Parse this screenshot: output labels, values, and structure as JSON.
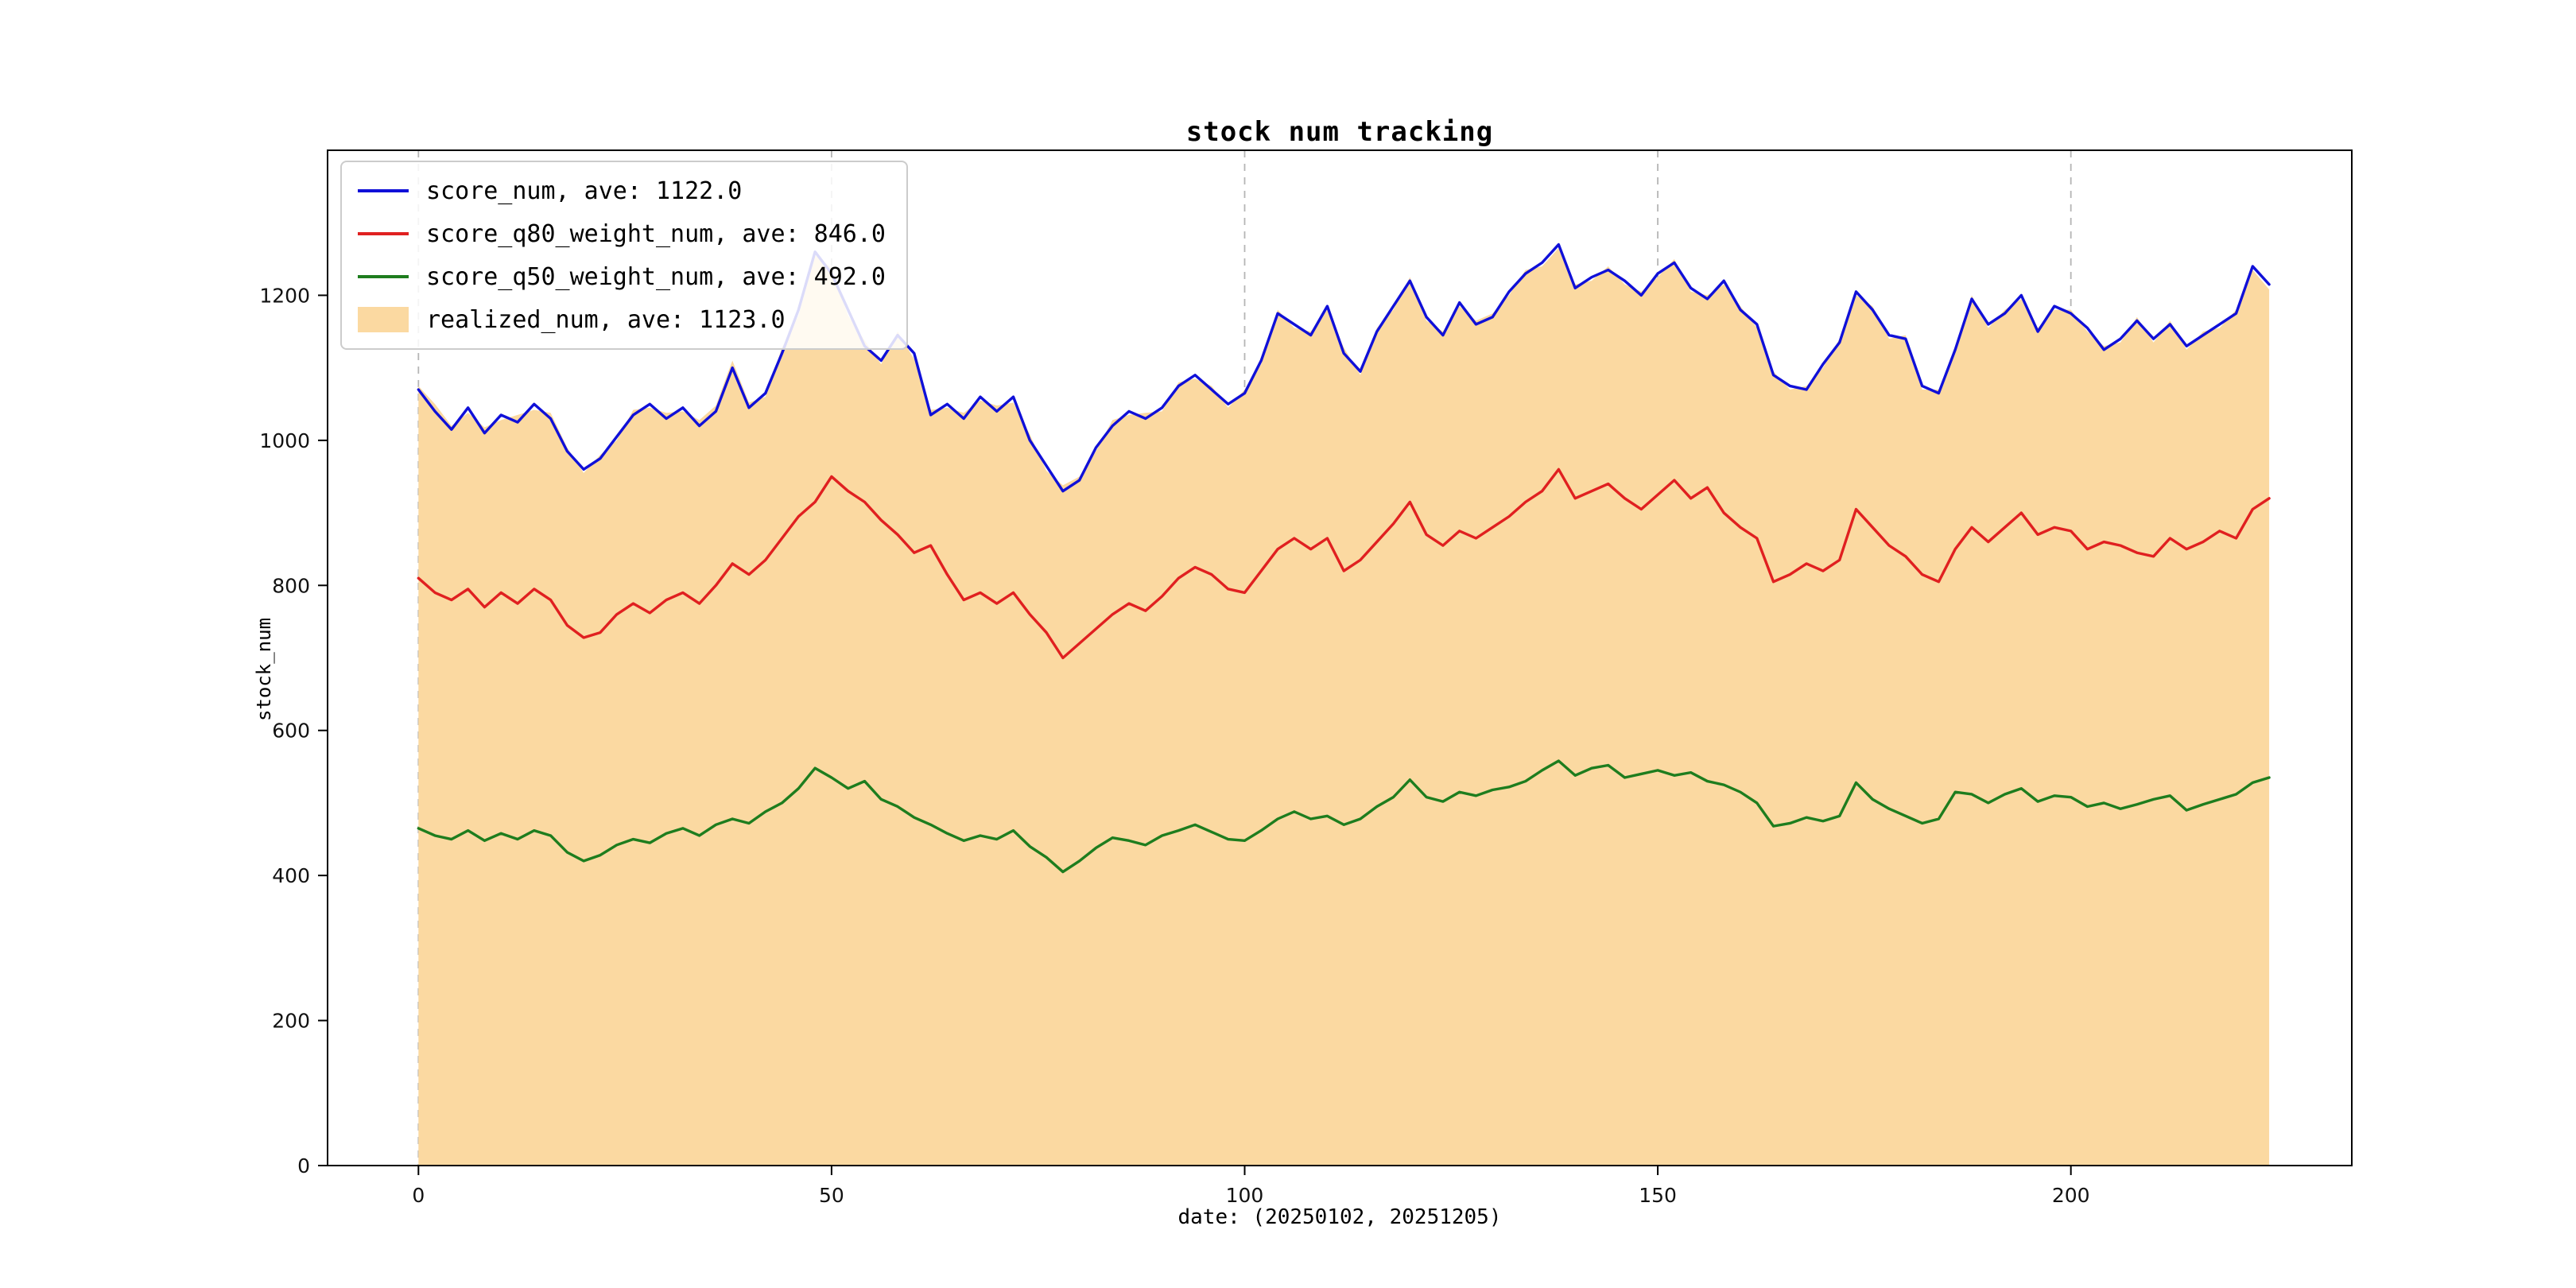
{
  "title": "stock num tracking",
  "chart_data": {
    "type": "line",
    "title": "stock num tracking",
    "xlabel": "date: (20250102, 20251205)",
    "ylabel": "stock_num",
    "xlim": [
      -11,
      234
    ],
    "ylim": [
      0,
      1400
    ],
    "xticks": [
      0,
      50,
      100,
      150,
      200
    ],
    "yticks": [
      0,
      200,
      400,
      600,
      800,
      1000,
      1200
    ],
    "grid": "vertical-dashed",
    "grid_color": "#b5b5b5",
    "legend_position": "upper-left",
    "x": [
      0,
      2,
      4,
      6,
      8,
      10,
      12,
      14,
      16,
      18,
      20,
      22,
      24,
      26,
      28,
      30,
      32,
      34,
      36,
      38,
      40,
      42,
      44,
      46,
      48,
      50,
      52,
      54,
      56,
      58,
      60,
      62,
      64,
      66,
      68,
      70,
      72,
      74,
      76,
      78,
      80,
      82,
      84,
      86,
      88,
      90,
      92,
      94,
      96,
      98,
      100,
      102,
      104,
      106,
      108,
      110,
      112,
      114,
      116,
      118,
      120,
      122,
      124,
      126,
      128,
      130,
      132,
      134,
      136,
      138,
      140,
      142,
      144,
      146,
      148,
      150,
      152,
      154,
      156,
      158,
      160,
      162,
      164,
      166,
      168,
      170,
      172,
      174,
      176,
      178,
      180,
      182,
      184,
      186,
      188,
      190,
      192,
      194,
      196,
      198,
      200,
      202,
      204,
      206,
      208,
      210,
      212,
      214,
      216,
      218,
      220,
      222,
      224
    ],
    "series": [
      {
        "name": "score_num, ave: 1122.0",
        "type": "line",
        "color": "#1010d8",
        "values": [
          1070,
          1040,
          1015,
          1045,
          1010,
          1035,
          1025,
          1050,
          1030,
          985,
          960,
          975,
          1005,
          1035,
          1050,
          1030,
          1045,
          1020,
          1040,
          1100,
          1045,
          1065,
          1120,
          1180,
          1260,
          1230,
          1180,
          1130,
          1110,
          1145,
          1120,
          1035,
          1050,
          1030,
          1060,
          1040,
          1060,
          1000,
          965,
          930,
          945,
          990,
          1020,
          1040,
          1030,
          1045,
          1075,
          1090,
          1070,
          1050,
          1065,
          1110,
          1175,
          1160,
          1145,
          1185,
          1120,
          1095,
          1150,
          1185,
          1220,
          1170,
          1145,
          1190,
          1160,
          1170,
          1205,
          1230,
          1245,
          1270,
          1210,
          1225,
          1235,
          1220,
          1200,
          1230,
          1245,
          1210,
          1195,
          1220,
          1180,
          1160,
          1090,
          1075,
          1070,
          1105,
          1135,
          1205,
          1180,
          1145,
          1140,
          1075,
          1065,
          1125,
          1195,
          1160,
          1175,
          1200,
          1150,
          1185,
          1175,
          1155,
          1125,
          1140,
          1165,
          1140,
          1160,
          1130,
          1145,
          1160,
          1175,
          1240,
          1215
        ]
      },
      {
        "name": "score_q80_weight_num, ave: 846.0",
        "type": "line",
        "color": "#e02020",
        "values": [
          810,
          790,
          780,
          795,
          770,
          790,
          775,
          795,
          780,
          745,
          728,
          735,
          760,
          775,
          762,
          780,
          790,
          775,
          800,
          830,
          815,
          835,
          865,
          895,
          915,
          950,
          930,
          915,
          890,
          870,
          845,
          855,
          815,
          780,
          790,
          775,
          790,
          760,
          735,
          700,
          720,
          740,
          760,
          775,
          765,
          785,
          810,
          825,
          815,
          795,
          790,
          820,
          850,
          865,
          850,
          865,
          820,
          835,
          860,
          885,
          915,
          870,
          855,
          875,
          865,
          880,
          895,
          915,
          930,
          960,
          920,
          930,
          940,
          920,
          905,
          925,
          945,
          920,
          935,
          900,
          880,
          865,
          805,
          815,
          830,
          820,
          835,
          905,
          880,
          855,
          840,
          815,
          805,
          850,
          880,
          860,
          880,
          900,
          870,
          880,
          875,
          850,
          860,
          855,
          845,
          840,
          865,
          850,
          860,
          875,
          865,
          905,
          920
        ]
      },
      {
        "name": "score_q50_weight_num, ave: 492.0",
        "type": "line",
        "color": "#1e7d1e",
        "values": [
          465,
          455,
          450,
          462,
          448,
          458,
          450,
          462,
          455,
          432,
          420,
          428,
          442,
          450,
          445,
          458,
          465,
          455,
          470,
          478,
          472,
          488,
          500,
          520,
          548,
          535,
          520,
          530,
          505,
          495,
          480,
          470,
          458,
          448,
          455,
          450,
          462,
          440,
          425,
          405,
          420,
          438,
          452,
          448,
          442,
          455,
          462,
          470,
          460,
          450,
          448,
          462,
          478,
          488,
          478,
          482,
          470,
          478,
          495,
          508,
          532,
          508,
          502,
          515,
          510,
          518,
          522,
          530,
          545,
          558,
          538,
          548,
          552,
          535,
          540,
          545,
          538,
          542,
          530,
          525,
          515,
          500,
          468,
          472,
          480,
          475,
          482,
          528,
          505,
          492,
          482,
          472,
          478,
          515,
          512,
          500,
          512,
          520,
          502,
          510,
          508,
          495,
          500,
          492,
          498,
          505,
          510,
          490,
          498,
          505,
          512,
          528,
          535
        ]
      },
      {
        "name": "realized_num, ave: 1123.0",
        "type": "area",
        "color": "#fbd9a1",
        "values": [
          1075,
          1050,
          1020,
          1038,
          1018,
          1028,
          1035,
          1042,
          1038,
          990,
          955,
          980,
          1000,
          1042,
          1045,
          1038,
          1040,
          1028,
          1048,
          1110,
          1052,
          1060,
          1128,
          1172,
          1255,
          1238,
          1172,
          1138,
          1105,
          1150,
          1112,
          1042,
          1045,
          1038,
          1055,
          1048,
          1052,
          1008,
          958,
          938,
          950,
          985,
          1028,
          1035,
          1038,
          1040,
          1080,
          1085,
          1075,
          1045,
          1070,
          1105,
          1180,
          1155,
          1150,
          1180,
          1128,
          1090,
          1155,
          1180,
          1225,
          1165,
          1150,
          1185,
          1165,
          1175,
          1200,
          1235,
          1240,
          1265,
          1215,
          1220,
          1240,
          1215,
          1205,
          1225,
          1250,
          1205,
          1200,
          1215,
          1185,
          1155,
          1095,
          1070,
          1075,
          1100,
          1140,
          1200,
          1185,
          1140,
          1145,
          1070,
          1070,
          1120,
          1200,
          1155,
          1180,
          1195,
          1155,
          1180,
          1180,
          1150,
          1130,
          1135,
          1170,
          1135,
          1165,
          1125,
          1150,
          1155,
          1180,
          1235,
          1208
        ]
      }
    ]
  }
}
